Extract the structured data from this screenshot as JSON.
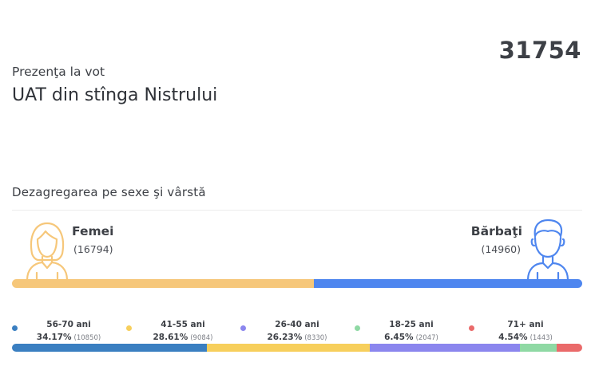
{
  "header": {
    "total": "31754",
    "subtitle": "Prezenţa la vot",
    "title": "UAT din stînga Nistrului"
  },
  "section": {
    "title": "Dezagregarea pe sexe şi vârstă"
  },
  "gender": {
    "female": {
      "label": "Femei",
      "count": "(16794)",
      "value": 16794,
      "color": "#f6c77a",
      "icon": "female-avatar-icon"
    },
    "male": {
      "label": "Bărbaţi",
      "count": "(14960)",
      "value": 14960,
      "color": "#4e86ef",
      "icon": "male-avatar-icon"
    }
  },
  "age_groups": [
    {
      "name": "56-70 ani",
      "pct": "34.17%",
      "count": "(10850)",
      "value": 34.17,
      "color": "#3a7fc1"
    },
    {
      "name": "41-55 ani",
      "pct": "28.61%",
      "count": "(9084)",
      "value": 28.61,
      "color": "#f7cf5c"
    },
    {
      "name": "26-40 ani",
      "pct": "26.23%",
      "count": "(8330)",
      "value": 26.23,
      "color": "#8b86ee"
    },
    {
      "name": "18-25 ani",
      "pct": "6.45%",
      "count": "(2047)",
      "value": 6.45,
      "color": "#8fd9a4"
    },
    {
      "name": "71+ ani",
      "pct": "4.54%",
      "count": "(1443)",
      "value": 4.54,
      "color": "#ea6a6a"
    }
  ]
}
